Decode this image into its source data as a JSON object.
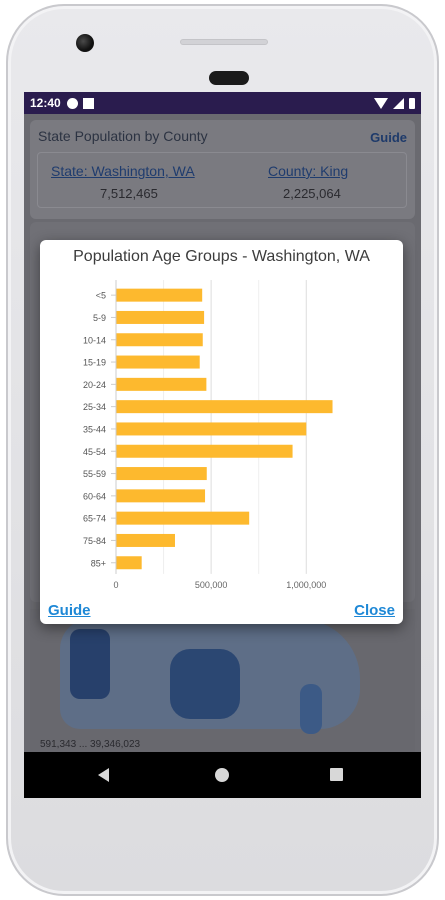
{
  "statusbar": {
    "time": "12:40"
  },
  "app": {
    "title": "State Population by County",
    "guide_label": "Guide",
    "state_label": "State: Washington, WA",
    "state_value": "7,512,465",
    "county_label": "County: King",
    "county_value": "2,225,064",
    "legend_text": "591,343 ... 39,346,023"
  },
  "dialog": {
    "title": "Population Age Groups - Washington, WA",
    "guide_button": "Guide",
    "close_button": "Close"
  },
  "colors": {
    "bar": "#FDB92E",
    "accent": "#1E88D6",
    "statusbar": "#2A1C4E"
  },
  "icons": {
    "status": [
      "gear-circle-icon",
      "sim-card-icon"
    ],
    "status_right": [
      "wifi-icon",
      "signal-icon",
      "battery-icon"
    ],
    "nav": [
      "back-icon",
      "home-icon",
      "recents-icon"
    ]
  },
  "chart_data": {
    "type": "bar",
    "orientation": "horizontal",
    "title": "Population Age Groups - Washington, WA",
    "categories": [
      "<5",
      "5-9",
      "10-14",
      "15-19",
      "20-24",
      "25-34",
      "35-44",
      "45-54",
      "55-59",
      "60-64",
      "65-74",
      "75-84",
      "85+"
    ],
    "values": [
      453000,
      463000,
      456000,
      440000,
      475000,
      1138000,
      1000000,
      928000,
      477000,
      468000,
      700000,
      310000,
      135000
    ],
    "xticks": [
      0,
      500000,
      1000000
    ],
    "xtick_labels": [
      "0",
      "500,000",
      "1,000,000"
    ],
    "xlim": [
      0,
      1130000
    ],
    "grid": true
  }
}
